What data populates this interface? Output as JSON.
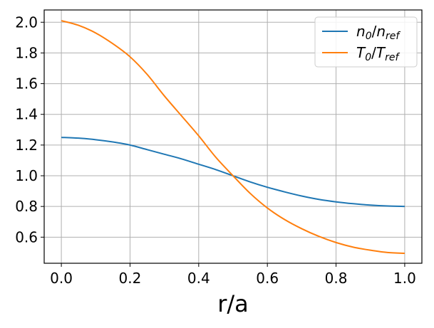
{
  "chart_data": {
    "type": "line",
    "title": "",
    "xlabel": "r/a",
    "ylabel": "",
    "xlim": [
      -0.05,
      1.05
    ],
    "ylim": [
      0.43,
      2.08
    ],
    "xticks": [
      "0.0",
      "0.2",
      "0.4",
      "0.6",
      "0.8",
      "1.0"
    ],
    "yticks": [
      "0.6",
      "0.8",
      "1.0",
      "1.2",
      "1.4",
      "1.6",
      "1.8",
      "2.0"
    ],
    "grid": true,
    "legend_position": "top-right",
    "x": [
      0.0,
      0.05,
      0.1,
      0.15,
      0.2,
      0.25,
      0.3,
      0.35,
      0.4,
      0.45,
      0.5,
      0.55,
      0.6,
      0.65,
      0.7,
      0.75,
      0.8,
      0.85,
      0.9,
      0.95,
      1.0
    ],
    "series": [
      {
        "name": "n0/nref",
        "color": "#1f77b4",
        "values": [
          1.25,
          1.245,
          1.235,
          1.22,
          1.2,
          1.17,
          1.14,
          1.11,
          1.075,
          1.04,
          1.0,
          0.96,
          0.925,
          0.895,
          0.868,
          0.846,
          0.83,
          0.818,
          0.809,
          0.803,
          0.8
        ]
      },
      {
        "name": "T0/Tref",
        "color": "#ff7f0e",
        "values": [
          2.01,
          1.98,
          1.93,
          1.86,
          1.775,
          1.66,
          1.52,
          1.39,
          1.26,
          1.12,
          1.0,
          0.885,
          0.79,
          0.715,
          0.655,
          0.605,
          0.565,
          0.535,
          0.515,
          0.5,
          0.495
        ]
      }
    ],
    "legend": [
      {
        "base": "n",
        "sub0": "0",
        "slash": "/",
        "base2": "n",
        "sub1": "ref"
      },
      {
        "base": "T",
        "sub0": "0",
        "slash": "/",
        "base2": "T",
        "sub1": "ref"
      }
    ]
  }
}
